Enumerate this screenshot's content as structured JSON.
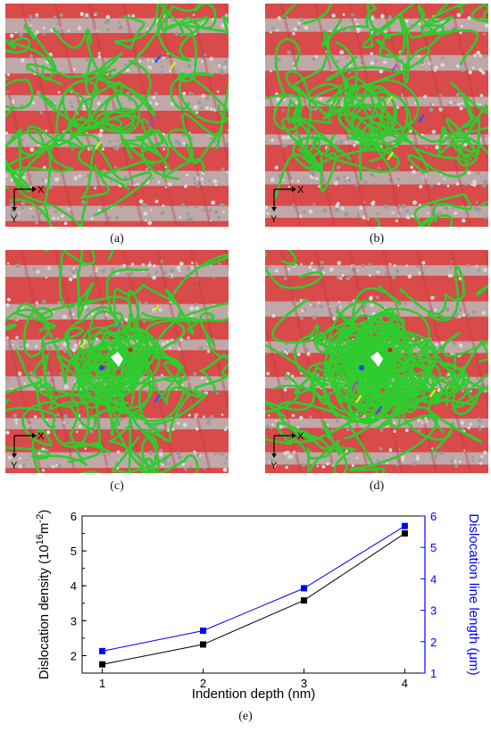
{
  "figure": {
    "panels": [
      {
        "id": "a",
        "caption": "(a)",
        "axis_x": "X",
        "axis_y": "Y",
        "loop_density": "low"
      },
      {
        "id": "b",
        "caption": "(b)",
        "axis_x": "X",
        "axis_y": "Y",
        "loop_density": "medium"
      },
      {
        "id": "c",
        "caption": "(c)",
        "axis_x": "X",
        "axis_y": "Y",
        "loop_density": "high"
      },
      {
        "id": "d",
        "caption": "(d)",
        "axis_x": "X",
        "axis_y": "Y",
        "loop_density": "very-high"
      }
    ],
    "chart_caption": "(e)",
    "colors": {
      "background_red": "#d94a4a",
      "stripe_gray": "#b9b9b9",
      "dislocation_green": "#2ecc2e",
      "series_density": "#000000",
      "series_length": "#0000ff"
    }
  },
  "chart_data": {
    "type": "line",
    "xlabel": "Indention depth (nm)",
    "ylabel_left": "Dislocation density (10",
    "ylabel_left_sup1": "16",
    "ylabel_left_mid": "m",
    "ylabel_left_sup2": "-2",
    "ylabel_left_end": ")",
    "ylabel_right": "Dislocation line length (μm)",
    "x": [
      1,
      2,
      3,
      4
    ],
    "xlim": [
      0.8,
      4.2
    ],
    "ylim_left": [
      1.5,
      6
    ],
    "ylim_right": [
      1,
      6
    ],
    "x_ticks": [
      "1",
      "2",
      "3",
      "4"
    ],
    "y_ticks_left": [
      "2",
      "3",
      "4",
      "5",
      "6"
    ],
    "y_ticks_right": [
      "1",
      "2",
      "3",
      "4",
      "5",
      "6"
    ],
    "series": [
      {
        "axis": "left",
        "color": "#000000",
        "values": [
          1.75,
          2.32,
          3.58,
          5.5
        ]
      },
      {
        "axis": "right",
        "color": "#0000ff",
        "values": [
          1.7,
          2.35,
          3.7,
          5.68
        ]
      }
    ]
  }
}
